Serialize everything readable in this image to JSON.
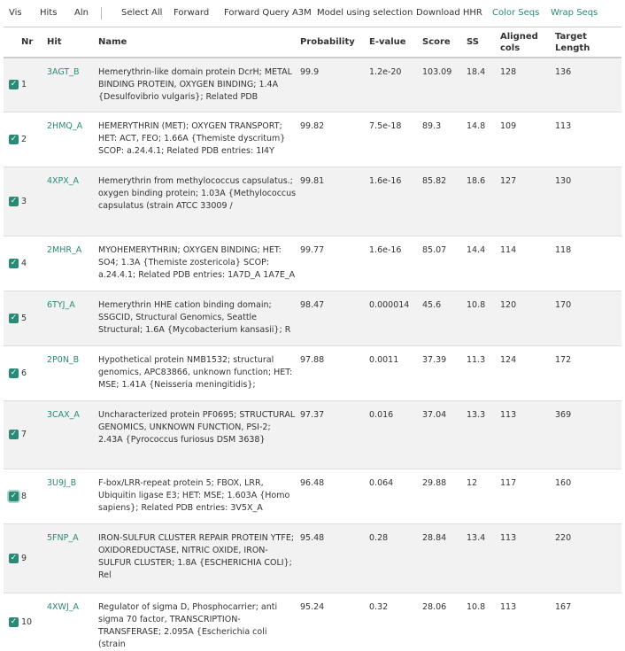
{
  "toolbar": {
    "vis": "Vis",
    "hits": "Hits",
    "aln": "Aln",
    "select_all": "Select All",
    "forward": "Forward",
    "forward_query": "Forward Query A3M",
    "model_sel": "Model using selection",
    "download": "Download HHR",
    "color_seqs": "Color Seqs",
    "wrap_seqs": "Wrap Seqs"
  },
  "columns": {
    "nr": "Nr",
    "hit": "Hit",
    "name": "Name",
    "probability": "Probability",
    "evalue": "E-value",
    "score": "Score",
    "ss": "SS",
    "aligned": "Aligned cols",
    "target": "Target Length"
  },
  "rows": [
    {
      "nr": "1",
      "hit": "3AGT_B",
      "name": "Hemerythrin-like domain protein DcrH; METAL BINDING PROTEIN, OXYGEN BINDING; 1.4A {Desulfovibrio vulgaris}; Related PDB",
      "prob": "99.9",
      "ev": "1.2e-20",
      "score": "103.09",
      "ss": "18.4",
      "al": "128",
      "tl": "136"
    },
    {
      "nr": "2",
      "hit": "2HMQ_A",
      "name": "HEMERYTHRIN (MET); OXYGEN TRANSPORT; HET: ACT, FEO; 1.66A {Themiste dyscritum} SCOP: a.24.4.1; Related PDB entries: 1I4Y",
      "prob": "99.82",
      "ev": "7.5e-18",
      "score": "89.3",
      "ss": "14.8",
      "al": "109",
      "tl": "113"
    },
    {
      "nr": "3",
      "hit": "4XPX_A",
      "name": "Hemerythrin from methylococcus capsulatus.; oxygen binding protein; 1.03A {Methylococcus capsulatus (strain ATCC 33009 /",
      "prob": "99.81",
      "ev": "1.6e-16",
      "score": "85.82",
      "ss": "18.6",
      "al": "127",
      "tl": "130"
    },
    {
      "nr": "4",
      "hit": "2MHR_A",
      "name": "MYOHEMERYTHRIN; OXYGEN BINDING; HET: SO4; 1.3A {Themiste zostericola} SCOP: a.24.4.1; Related PDB entries: 1A7D_A 1A7E_A",
      "prob": "99.77",
      "ev": "1.6e-16",
      "score": "85.07",
      "ss": "14.4",
      "al": "114",
      "tl": "118"
    },
    {
      "nr": "5",
      "hit": "6TYJ_A",
      "name": "Hemerythrin HHE cation binding domain; SSGCID, Structural Genomics, Seattle Structural; 1.6A {Mycobacterium kansasii}; R",
      "prob": "98.47",
      "ev": "0.000014",
      "score": "45.6",
      "ss": "10.8",
      "al": "120",
      "tl": "170"
    },
    {
      "nr": "6",
      "hit": "2P0N_B",
      "name": "Hypothetical protein NMB1532; structural genomics, APC83866, unknown function; HET: MSE; 1.41A {Neisseria meningitidis};",
      "prob": "97.88",
      "ev": "0.0011",
      "score": "37.39",
      "ss": "11.3",
      "al": "124",
      "tl": "172"
    },
    {
      "nr": "7",
      "hit": "3CAX_A",
      "name": "Uncharacterized protein PF0695; STRUCTURAL GENOMICS, UNKNOWN FUNCTION, PSI-2; 2.43A {Pyrococcus furiosus DSM 3638}",
      "prob": "97.37",
      "ev": "0.016",
      "score": "37.04",
      "ss": "13.3",
      "al": "113",
      "tl": "369"
    },
    {
      "nr": "8",
      "hit": "3U9J_B",
      "name": "F-box/LRR-repeat protein 5; FBOX, LRR, Ubiquitin ligase E3; HET: MSE; 1.603A {Homo sapiens}; Related PDB entries: 3V5X_A",
      "prob": "96.48",
      "ev": "0.064",
      "score": "29.88",
      "ss": "12",
      "al": "117",
      "tl": "160"
    },
    {
      "nr": "9",
      "hit": "5FNP_A",
      "name": "IRON-SULFUR CLUSTER REPAIR PROTEIN YTFE; OXIDOREDUCTASE, NITRIC OXIDE, IRON-SULFUR CLUSTER; 1.8A {ESCHERICHIA COLI}; Rel",
      "prob": "95.48",
      "ev": "0.28",
      "score": "28.84",
      "ss": "13.4",
      "al": "113",
      "tl": "220"
    },
    {
      "nr": "10",
      "hit": "4XWJ_A",
      "name": "Regulator of sigma D, Phosphocarrier; anti sigma 70 factor, TRANSCRIPTION-TRANSFERASE; 2.095A {Escherichia coli (strain",
      "prob": "95.24",
      "ev": "0.32",
      "score": "28.06",
      "ss": "10.8",
      "al": "113",
      "tl": "167"
    }
  ]
}
